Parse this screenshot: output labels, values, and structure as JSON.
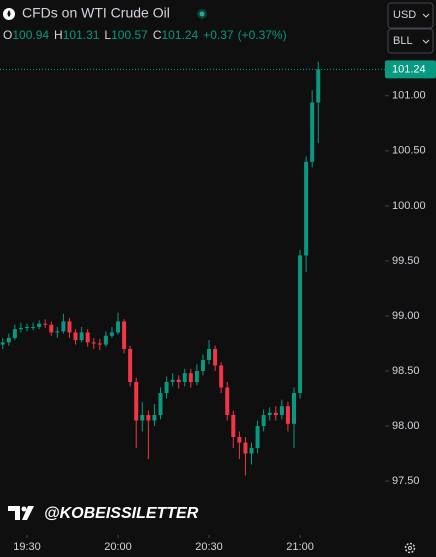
{
  "chart_data": {
    "type": "candlestick",
    "title": "CFDs on WTI Crude Oil",
    "header": [
      {
        "key": "O",
        "value": "100.94"
      },
      {
        "key": "H",
        "value": "101.31"
      },
      {
        "key": "L",
        "value": "100.57"
      },
      {
        "key": "C",
        "value": "101.24"
      }
    ],
    "change": "+0.37",
    "change_pct": "(+0.37%)",
    "currency": "USD",
    "unit": "BLL",
    "watermark": "@KOBEISSILETTER",
    "last_price_label": "101.24",
    "up_color": "#089981",
    "down_color": "#f23645",
    "x": [
      1162,
      1164,
      1166,
      1168,
      1170,
      1172,
      1174,
      1176,
      1178,
      1180,
      1182,
      1184,
      1186,
      1188,
      1190,
      1192,
      1194,
      1196,
      1198,
      1200,
      1202,
      1204,
      1206,
      1208,
      1210,
      1212,
      1214,
      1216,
      1218,
      1220,
      1222,
      1224,
      1226,
      1228,
      1230,
      1232,
      1234,
      1236,
      1238,
      1240,
      1242,
      1244,
      1246,
      1248,
      1250,
      1252,
      1254,
      1256,
      1258,
      1260,
      1262,
      1264,
      1266
    ],
    "series": {
      "open": [
        98.74,
        98.76,
        98.8,
        98.88,
        98.89,
        98.9,
        98.9,
        98.93,
        98.92,
        98.85,
        98.86,
        98.95,
        98.85,
        98.78,
        98.85,
        98.76,
        98.75,
        98.74,
        98.82,
        98.85,
        98.95,
        98.7,
        98.4,
        98.05,
        98.1,
        98.05,
        98.1,
        98.3,
        98.4,
        98.42,
        98.4,
        98.48,
        98.4,
        98.5,
        98.6,
        98.7,
        98.55,
        98.35,
        98.1,
        97.9,
        97.85,
        97.75,
        97.8,
        98.0,
        98.1,
        98.12,
        98.1,
        98.18,
        98.02,
        98.3,
        99.55,
        100.4,
        100.94
      ],
      "high": [
        98.8,
        98.84,
        98.92,
        98.94,
        98.93,
        98.94,
        98.96,
        98.97,
        98.95,
        98.9,
        99.02,
        98.98,
        98.88,
        98.9,
        98.88,
        98.8,
        98.79,
        98.86,
        98.9,
        99.03,
        98.97,
        98.73,
        98.44,
        98.22,
        98.14,
        98.2,
        98.35,
        98.45,
        98.48,
        98.46,
        98.52,
        98.52,
        98.56,
        98.65,
        98.78,
        98.73,
        98.58,
        98.4,
        98.14,
        97.95,
        97.9,
        97.85,
        98.05,
        98.15,
        98.17,
        98.18,
        98.24,
        98.22,
        98.35,
        99.6,
        100.45,
        101.05,
        101.31
      ],
      "low": [
        98.7,
        98.73,
        98.78,
        98.85,
        98.86,
        98.87,
        98.88,
        98.89,
        98.82,
        98.8,
        98.84,
        98.8,
        98.74,
        98.76,
        98.72,
        98.7,
        98.69,
        98.72,
        98.8,
        98.83,
        98.66,
        98.36,
        97.8,
        97.95,
        97.7,
        98.0,
        98.06,
        98.25,
        98.36,
        98.34,
        98.36,
        98.35,
        98.37,
        98.46,
        98.56,
        98.5,
        98.3,
        98.05,
        97.8,
        97.7,
        97.55,
        97.65,
        97.75,
        97.95,
        98.05,
        98.05,
        98.06,
        97.95,
        97.8,
        98.25,
        99.4,
        100.35,
        100.57
      ],
      "close": [
        98.76,
        98.8,
        98.88,
        98.89,
        98.9,
        98.9,
        98.93,
        98.92,
        98.85,
        98.86,
        98.95,
        98.85,
        98.78,
        98.85,
        98.76,
        98.75,
        98.74,
        98.82,
        98.85,
        98.95,
        98.7,
        98.4,
        98.05,
        98.1,
        98.05,
        98.1,
        98.3,
        98.4,
        98.42,
        98.4,
        98.48,
        98.4,
        98.5,
        98.6,
        98.7,
        98.55,
        98.35,
        98.1,
        97.9,
        97.85,
        97.75,
        97.8,
        98.0,
        98.1,
        98.12,
        98.1,
        98.18,
        98.02,
        98.3,
        99.55,
        100.4,
        100.94,
        101.24
      ]
    },
    "xlim": [
      1161.1,
      1288.0
    ],
    "xticks": [
      {
        "value": 1170,
        "label": "19:30"
      },
      {
        "value": 1200,
        "label": "20:00"
      },
      {
        "value": 1230,
        "label": "20:30"
      },
      {
        "value": 1260,
        "label": "21:00"
      }
    ],
    "ylim": [
      97.01,
      101.87
    ],
    "yticks": [
      {
        "value": 97.5,
        "label": "97.50"
      },
      {
        "value": 98,
        "label": "98.00"
      },
      {
        "value": 98.5,
        "label": "98.50"
      },
      {
        "value": 99,
        "label": "99.00"
      },
      {
        "value": 99.5,
        "label": "99.50"
      },
      {
        "value": 100,
        "label": "100.00"
      },
      {
        "value": 100.5,
        "label": "100.50"
      },
      {
        "value": 101,
        "label": "101.00"
      }
    ]
  }
}
